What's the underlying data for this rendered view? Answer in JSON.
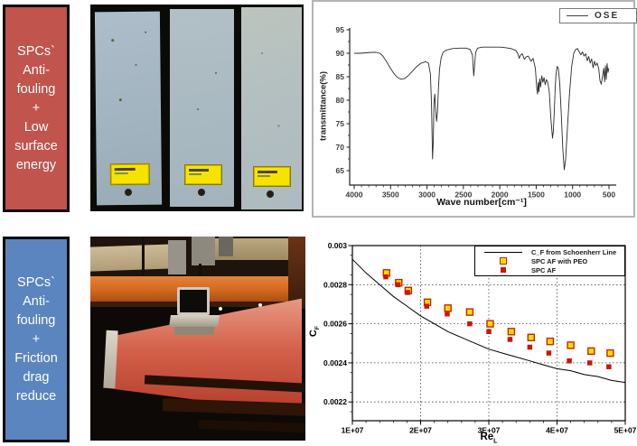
{
  "topic_boxes": {
    "top": {
      "lines": [
        "SPCs`",
        "Anti-",
        "fouling",
        "+",
        "Low",
        "surface",
        "energy"
      ],
      "bg_color": "#c1544d",
      "text_color": "#ffffff"
    },
    "bottom": {
      "lines": [
        "SPCs`",
        "Anti-",
        "fouling",
        "+",
        "Friction",
        "drag",
        "reduce"
      ],
      "bg_color": "#5a85be",
      "text_color": "#ffffff"
    }
  },
  "photos": {
    "test_panels": {
      "panel_count": 3,
      "label_color": "#f6e400",
      "panel_color": "#aebcc6"
    },
    "towing_tank": {
      "beam_color": "#d2691e",
      "plate_color": "#c8543f"
    }
  },
  "chart_data": [
    {
      "type": "line",
      "name": "ftir-spectrum",
      "xlabel": "Wave number[cm⁻¹]",
      "ylabel": "transmittance(%)",
      "x_reversed": true,
      "xlim": [
        4000,
        500
      ],
      "ylim": [
        62,
        95.5
      ],
      "x_tick_values": [
        4000,
        3500,
        3000,
        2500,
        2000,
        1500,
        1000,
        500
      ],
      "x_tick_labels": [
        "4000",
        "3500",
        "3000",
        "2500",
        "2000",
        "1500",
        "1000",
        "500"
      ],
      "y_tick_values": [
        65,
        70,
        75,
        80,
        85,
        90,
        95
      ],
      "y_tick_labels": [
        "65",
        "70",
        "75",
        "80",
        "85",
        "90",
        "95"
      ],
      "legend_position": "top-right",
      "grid": false,
      "series": [
        {
          "name": "OSE",
          "color": "#2a2a2a",
          "points": [
            [
              4000,
              90
            ],
            [
              3920,
              90
            ],
            [
              3840,
              90.1
            ],
            [
              3760,
              90.2
            ],
            [
              3700,
              90.2
            ],
            [
              3650,
              90
            ],
            [
              3610,
              89.5
            ],
            [
              3560,
              88.3
            ],
            [
              3510,
              87
            ],
            [
              3460,
              85.8
            ],
            [
              3410,
              84.9
            ],
            [
              3360,
              84.5
            ],
            [
              3310,
              84.6
            ],
            [
              3260,
              85.2
            ],
            [
              3200,
              86.2
            ],
            [
              3140,
              87.2
            ],
            [
              3080,
              87.9
            ],
            [
              3020,
              88.2
            ],
            [
              2980,
              87.9
            ],
            [
              2952,
              85.5
            ],
            [
              2938,
              79
            ],
            [
              2924,
              67.5
            ],
            [
              2914,
              71
            ],
            [
              2904,
              79.5
            ],
            [
              2893,
              81.3
            ],
            [
              2880,
              77.8
            ],
            [
              2868,
              75.5
            ],
            [
              2856,
              77.5
            ],
            [
              2844,
              82
            ],
            [
              2828,
              86.5
            ],
            [
              2806,
              89
            ],
            [
              2780,
              90.2
            ],
            [
              2730,
              90.7
            ],
            [
              2650,
              91
            ],
            [
              2550,
              91.1
            ],
            [
              2460,
              91.1
            ],
            [
              2408,
              90.8
            ],
            [
              2375,
              89.6
            ],
            [
              2358,
              85.2
            ],
            [
              2346,
              87.6
            ],
            [
              2332,
              90.2
            ],
            [
              2305,
              91.1
            ],
            [
              2240,
              91.3
            ],
            [
              2160,
              91.3
            ],
            [
              2080,
              91.3
            ],
            [
              2000,
              91.3
            ],
            [
              1920,
              91.2
            ],
            [
              1845,
              91
            ],
            [
              1780,
              90.6
            ],
            [
              1748,
              89.8
            ],
            [
              1732,
              88.9
            ],
            [
              1716,
              89.6
            ],
            [
              1692,
              89.9
            ],
            [
              1662,
              88.7
            ],
            [
              1640,
              89.2
            ],
            [
              1610,
              89.4
            ],
            [
              1572,
              88.3
            ],
            [
              1542,
              88.9
            ],
            [
              1512,
              86.8
            ],
            [
              1492,
              82.5
            ],
            [
              1482,
              81.3
            ],
            [
              1472,
              83.8
            ],
            [
              1462,
              81.8
            ],
            [
              1452,
              84.6
            ],
            [
              1440,
              82.8
            ],
            [
              1424,
              85.2
            ],
            [
              1408,
              83.8
            ],
            [
              1392,
              84.8
            ],
            [
              1376,
              83.3
            ],
            [
              1360,
              84.4
            ],
            [
              1342,
              83.8
            ],
            [
              1320,
              81.8
            ],
            [
              1298,
              76
            ],
            [
              1276,
              71.9
            ],
            [
              1264,
              73.4
            ],
            [
              1252,
              77.4
            ],
            [
              1240,
              82.4
            ],
            [
              1228,
              85.4
            ],
            [
              1212,
              87.2
            ],
            [
              1196,
              86.8
            ],
            [
              1176,
              83.6
            ],
            [
              1154,
              76.6
            ],
            [
              1134,
              69.6
            ],
            [
              1114,
              65.2
            ],
            [
              1096,
              67.4
            ],
            [
              1070,
              74.4
            ],
            [
              1042,
              81.4
            ],
            [
              1012,
              87.2
            ],
            [
              984,
              90
            ],
            [
              958,
              90.8
            ],
            [
              932,
              91
            ],
            [
              906,
              90.2
            ],
            [
              886,
              89.7
            ],
            [
              864,
              90.3
            ],
            [
              842,
              89.4
            ],
            [
              820,
              89.9
            ],
            [
              798,
              88.4
            ],
            [
              778,
              89.3
            ],
            [
              758,
              87.9
            ],
            [
              738,
              88.8
            ],
            [
              718,
              86.9
            ],
            [
              700,
              88.3
            ],
            [
              682,
              87.4
            ],
            [
              662,
              87.9
            ],
            [
              642,
              86.8
            ],
            [
              624,
              84.2
            ],
            [
              606,
              83.4
            ],
            [
              590,
              84.9
            ],
            [
              572,
              86.8
            ],
            [
              560,
              83.9
            ],
            [
              548,
              87.3
            ],
            [
              537,
              84.4
            ],
            [
              526,
              87.8
            ],
            [
              514,
              85.9
            ],
            [
              502,
              86.8
            ]
          ]
        }
      ]
    },
    {
      "type": "mixed",
      "name": "cf-vs-reynolds",
      "xlabel": {
        "main": "Re",
        "sub": "L"
      },
      "ylabel": {
        "main": "C",
        "sub": "F"
      },
      "x_unit": 10000000,
      "xlim": [
        1,
        5
      ],
      "ylim": [
        0.0021,
        0.003
      ],
      "x_tick_values": [
        1,
        2,
        3,
        4,
        5
      ],
      "x_tick_labels": [
        "1E+07",
        "2E+07",
        "3E+07",
        "4E+07",
        "5E+07"
      ],
      "y_tick_values": [
        0.003,
        0.0028,
        0.0026,
        0.0024,
        0.0022
      ],
      "y_tick_labels": [
        "0.003",
        "0.0028",
        "0.0026",
        "0.0024",
        "0.0022"
      ],
      "grid": {
        "h": [
          0.0028,
          0.0026,
          0.0024,
          0.0022
        ],
        "v": [
          2,
          3,
          4
        ]
      },
      "legend_position": "top-right",
      "series": [
        {
          "name": "C_F from Schoenherr Line",
          "type": "line",
          "color": "#000000",
          "points": [
            [
              1.0,
              0.00293
            ],
            [
              1.2,
              0.00286
            ],
            [
              1.4,
              0.0028
            ],
            [
              1.6,
              0.00274
            ],
            [
              1.8,
              0.00269
            ],
            [
              2.0,
              0.00264
            ],
            [
              2.2,
              0.0026
            ],
            [
              2.4,
              0.00256
            ],
            [
              2.6,
              0.00253
            ],
            [
              2.8,
              0.0025
            ],
            [
              3.0,
              0.00247
            ],
            [
              3.2,
              0.00245
            ],
            [
              3.4,
              0.00243
            ],
            [
              3.6,
              0.00241
            ],
            [
              3.8,
              0.00239
            ],
            [
              4.0,
              0.00237
            ],
            [
              4.2,
              0.00236
            ],
            [
              4.4,
              0.00234
            ],
            [
              4.6,
              0.00233
            ],
            [
              4.8,
              0.00231
            ],
            [
              5.0,
              0.0023
            ]
          ]
        },
        {
          "name": "SPC AF with PEO",
          "type": "scatter",
          "marker": {
            "shape": "square",
            "fill": "#ffe100",
            "stroke": "#cc2200",
            "size": 7
          },
          "points": [
            [
              1.5,
              0.00286
            ],
            [
              1.68,
              0.00281
            ],
            [
              1.82,
              0.00277
            ],
            [
              2.1,
              0.00271
            ],
            [
              2.4,
              0.00268
            ],
            [
              2.72,
              0.00266
            ],
            [
              3.02,
              0.0026
            ],
            [
              3.33,
              0.00256
            ],
            [
              3.62,
              0.00253
            ],
            [
              3.9,
              0.00251
            ],
            [
              4.2,
              0.00249
            ],
            [
              4.5,
              0.00246
            ],
            [
              4.78,
              0.00245
            ]
          ]
        },
        {
          "name": "SPC AF",
          "type": "scatter",
          "marker": {
            "shape": "square",
            "fill": "#cc1507",
            "stroke": "#cc1507",
            "size": 5.5
          },
          "points": [
            [
              1.49,
              0.00284
            ],
            [
              1.67,
              0.0028
            ],
            [
              1.81,
              0.00276
            ],
            [
              2.09,
              0.00269
            ],
            [
              2.39,
              0.00265
            ],
            [
              2.72,
              0.0026
            ],
            [
              3.0,
              0.00256
            ],
            [
              3.31,
              0.00252
            ],
            [
              3.6,
              0.00248
            ],
            [
              3.88,
              0.00245
            ],
            [
              4.18,
              0.00241
            ],
            [
              4.48,
              0.0024
            ],
            [
              4.76,
              0.00238
            ]
          ]
        }
      ]
    }
  ]
}
